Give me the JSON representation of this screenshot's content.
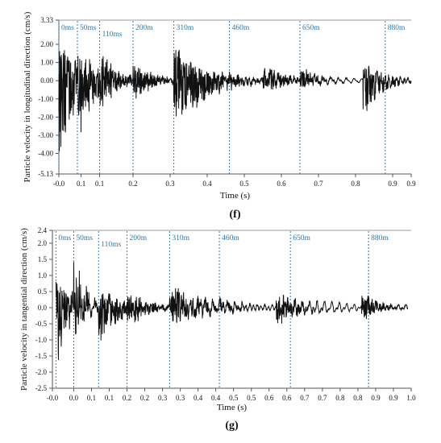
{
  "colors": {
    "signal": "#111111",
    "delay_line": "#2f7fb5",
    "delay_label": "#2a79ae",
    "axis": "#555555",
    "top_line": "#9a9a9a",
    "text": "#111111"
  },
  "chart_data": [
    {
      "id": "f",
      "type": "line",
      "panel_label": "(f)",
      "xlabel": "Time (s)",
      "ylabel": "Particle velocity in longitudinal direction (cm/s)",
      "xlim": [
        0.0,
        0.95
      ],
      "ylim": [
        -5.13,
        3.33
      ],
      "x_ticks": [
        0.0,
        0.1,
        0.2,
        0.3,
        0.4,
        0.5,
        0.6,
        0.7,
        0.8,
        0.9,
        0.95
      ],
      "x_tick_labels": [
        "-0.0",
        "0.1",
        "0.1",
        "0.2",
        "0.3",
        "0.4",
        "0.5",
        "0.6",
        "0.7",
        "0.8",
        "0.9",
        "0.9"
      ],
      "x_tick_values": [
        0.0,
        0.06,
        0.11,
        0.2,
        0.3,
        0.4,
        0.5,
        0.6,
        0.7,
        0.8,
        0.9,
        0.95
      ],
      "y_ticks": [
        3.33,
        2.0,
        1.0,
        0.0,
        -1.0,
        -2.0,
        -3.0,
        -4.0,
        -5.13
      ],
      "y_tick_labels": [
        "3.33",
        "2.00",
        "1.00",
        "0.00",
        "-1.00",
        "-2.00",
        "-3.00",
        "-4.00",
        "-5.13"
      ],
      "delays": [
        {
          "label": "0ms",
          "t": 0.0
        },
        {
          "label": "50ms",
          "t": 0.05
        },
        {
          "label": "110ms",
          "t": 0.11
        },
        {
          "label": "200m",
          "t": 0.2
        },
        {
          "label": "310m",
          "t": 0.31
        },
        {
          "label": "460m",
          "t": 0.46
        },
        {
          "label": "650m",
          "t": 0.65
        },
        {
          "label": "880m",
          "t": 0.88
        }
      ],
      "bursts": [
        {
          "t": 0.0,
          "amp": 2.6,
          "dur": 0.05,
          "neg": -4.6
        },
        {
          "t": 0.05,
          "amp": 2.4,
          "dur": 0.05,
          "neg": -2.8
        },
        {
          "t": 0.11,
          "amp": 1.2,
          "dur": 0.06,
          "neg": -1.3
        },
        {
          "t": 0.2,
          "amp": 1.1,
          "dur": 0.06,
          "neg": -1.0
        },
        {
          "t": 0.31,
          "amp": 1.9,
          "dur": 0.09,
          "neg": -2.9
        },
        {
          "t": 0.46,
          "amp": 0.2,
          "dur": 0.05,
          "neg": -0.2
        },
        {
          "t": 0.55,
          "amp": 1.0,
          "dur": 0.06,
          "neg": -0.7
        },
        {
          "t": 0.65,
          "amp": 0.7,
          "dur": 0.05,
          "neg": -0.5
        },
        {
          "t": 0.82,
          "amp": 1.2,
          "dur": 0.05,
          "neg": -2.0
        }
      ]
    },
    {
      "id": "g",
      "type": "line",
      "panel_label": "(g)",
      "xlabel": "Time (s)",
      "ylabel": "Particle velocity in tangential direction (cm/s)",
      "xlim": [
        -0.01,
        1.0
      ],
      "ylim": [
        -2.5,
        2.4
      ],
      "x_ticks": [
        0.0,
        0.1,
        0.2,
        0.3,
        0.4,
        0.5,
        0.6,
        0.7,
        0.8,
        0.9,
        1.0
      ],
      "x_tick_labels": [
        "-0.0",
        "0.0",
        "0.1",
        "0.1",
        "0.2",
        "0.2",
        "0.3",
        "0.3",
        "0.4",
        "0.4",
        "0.5",
        "0.5",
        "0.6",
        "0.6",
        "0.7",
        "0.7",
        "0.8",
        "0.8",
        "0.9",
        "0.9",
        "1.0"
      ],
      "x_tick_values": [
        -0.01,
        0.05,
        0.1,
        0.15,
        0.2,
        0.25,
        0.3,
        0.35,
        0.4,
        0.45,
        0.5,
        0.55,
        0.6,
        0.65,
        0.7,
        0.75,
        0.8,
        0.85,
        0.9,
        0.95,
        1.0
      ],
      "y_ticks": [
        2.4,
        2.0,
        1.5,
        1.0,
        0.5,
        0.0,
        -0.5,
        -1.0,
        -1.5,
        -2.0,
        -2.5
      ],
      "y_tick_labels": [
        "2.4",
        "2.0",
        "1.5",
        "1.0",
        "0.5",
        "0.0",
        "-0.5",
        "-1.0",
        "-1.5",
        "-2.0",
        "-2.5"
      ],
      "delays": [
        {
          "label": "0ms",
          "t": 0.0
        },
        {
          "label": "50ms",
          "t": 0.05
        },
        {
          "label": "110ms",
          "t": 0.12
        },
        {
          "label": "200m",
          "t": 0.2
        },
        {
          "label": "310m",
          "t": 0.32
        },
        {
          "label": "460m",
          "t": 0.46
        },
        {
          "label": "650m",
          "t": 0.66
        },
        {
          "label": "880m",
          "t": 0.88
        }
      ],
      "bursts": [
        {
          "t": 0.0,
          "amp": 1.3,
          "dur": 0.04,
          "neg": -2.1
        },
        {
          "t": 0.05,
          "amp": 2.0,
          "dur": 0.03,
          "neg": -0.6
        },
        {
          "t": 0.12,
          "amp": 0.6,
          "dur": 0.06,
          "neg": -1.4
        },
        {
          "t": 0.2,
          "amp": 0.5,
          "dur": 0.06,
          "neg": -0.5
        },
        {
          "t": 0.32,
          "amp": 0.7,
          "dur": 0.1,
          "neg": -0.6
        },
        {
          "t": 0.46,
          "amp": 0.2,
          "dur": 0.05,
          "neg": -0.2
        },
        {
          "t": 0.62,
          "amp": 0.5,
          "dur": 0.06,
          "neg": -0.6
        },
        {
          "t": 0.86,
          "amp": 0.5,
          "dur": 0.05,
          "neg": -0.4
        }
      ]
    }
  ]
}
